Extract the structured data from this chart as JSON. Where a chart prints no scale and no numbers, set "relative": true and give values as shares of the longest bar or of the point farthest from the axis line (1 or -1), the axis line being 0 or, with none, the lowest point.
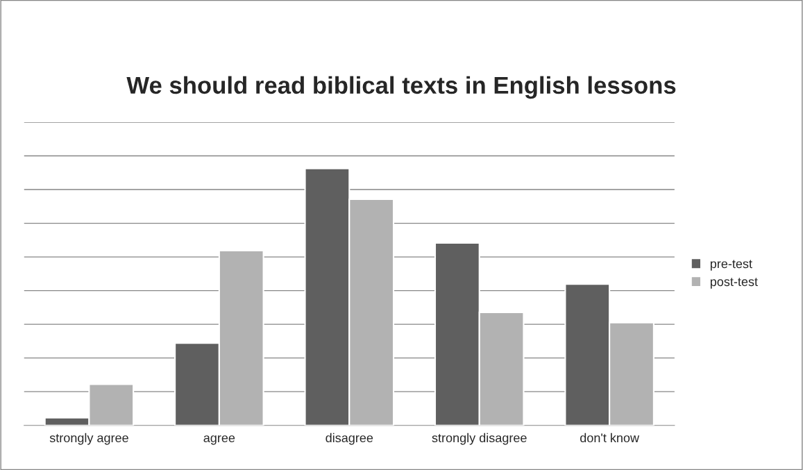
{
  "chart_data": {
    "type": "bar",
    "title": "We should read biblical texts in English lessons",
    "categories": [
      "strongly agree",
      "agree",
      "disagree",
      "strongly disagree",
      "don't know"
    ],
    "series": [
      {
        "name": "pre-test",
        "color": "#5f5f5f",
        "values": [
          0.03,
          0.32,
          1,
          0.71,
          0.55
        ]
      },
      {
        "name": "post-test",
        "color": "#b2b2b2",
        "values": [
          0.16,
          0.68,
          0.88,
          0.44,
          0.4
        ]
      }
    ],
    "relative": true,
    "grid": "y",
    "legend": "right"
  }
}
